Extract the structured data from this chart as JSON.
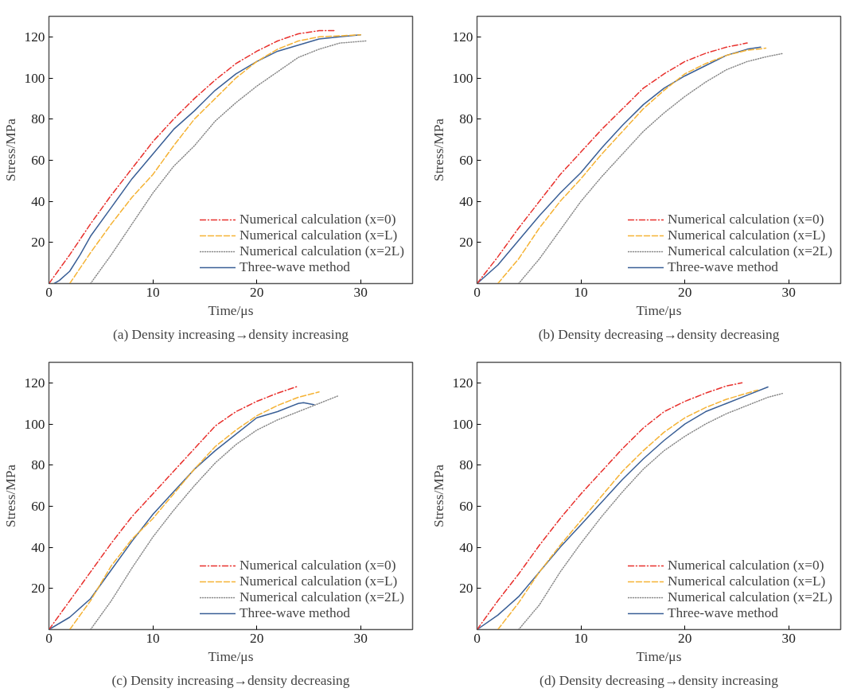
{
  "chart_data": [
    {
      "type": "line",
      "xlabel": "Time/μs",
      "ylabel": "Stress/MPa",
      "xlim": [
        0,
        35
      ],
      "ylim": [
        0,
        130
      ],
      "xticks": [
        0,
        10,
        20,
        30
      ],
      "yticks": [
        20,
        40,
        60,
        80,
        100,
        120
      ],
      "legend": "bottom right",
      "annotations": [
        "(a) Density increasing→density increasing"
      ],
      "series": [
        {
          "name": "Numerical calculation (x=0)",
          "color": "#e8312d",
          "line_style": "dashdot",
          "x": [
            0,
            2,
            4,
            6,
            8,
            10,
            12,
            14,
            16,
            18,
            20,
            22,
            24,
            26,
            27.5
          ],
          "values": [
            0,
            14,
            29,
            43,
            56,
            69,
            80,
            90,
            99,
            107,
            113,
            118,
            121.5,
            123,
            123
          ]
        },
        {
          "name": "Numerical calculation (x=L)",
          "color": "#f5b335",
          "line_style": "dashed",
          "x": [
            2,
            4,
            6,
            8,
            10,
            12,
            14,
            16,
            18,
            20,
            22,
            24,
            26,
            28,
            30
          ],
          "values": [
            0,
            15,
            29,
            42,
            53,
            67,
            80,
            90,
            100,
            108,
            114,
            118,
            120,
            120.5,
            121
          ]
        },
        {
          "name": "Numerical calculation (x=2L)",
          "color": "#888888",
          "line_style": "dotted",
          "x": [
            4,
            6,
            8,
            10,
            12,
            14,
            16,
            18,
            20,
            22,
            24,
            26,
            28,
            30.5
          ],
          "values": [
            0,
            14,
            29,
            44,
            57,
            67,
            79,
            88,
            96,
            103,
            110,
            114,
            117,
            118
          ]
        },
        {
          "name": "Three-wave method",
          "color": "#3a5f96",
          "line_style": "solid",
          "x": [
            0.5,
            1,
            2,
            3,
            4,
            6,
            8,
            10,
            12,
            14,
            16,
            18,
            20,
            22,
            24,
            26,
            28,
            30
          ],
          "values": [
            0,
            1.5,
            6,
            14,
            23,
            37,
            51,
            63,
            75,
            84,
            94,
            102,
            108,
            113,
            116,
            119,
            120,
            121
          ]
        }
      ]
    },
    {
      "type": "line",
      "xlabel": "Time/μs",
      "ylabel": "Stress/MPa",
      "xlim": [
        0,
        35
      ],
      "ylim": [
        0,
        130
      ],
      "xticks": [
        0,
        10,
        20,
        30
      ],
      "yticks": [
        20,
        40,
        60,
        80,
        100,
        120
      ],
      "legend": "bottom right",
      "annotations": [
        "(b) Density decreasing→density decreasing"
      ],
      "series": [
        {
          "name": "Numerical calculation (x=0)",
          "color": "#e8312d",
          "line_style": "dashdot",
          "x": [
            0,
            2,
            4,
            6,
            8,
            10,
            12,
            14,
            16,
            18,
            20,
            22,
            24,
            26
          ],
          "values": [
            0,
            13,
            27,
            40,
            53,
            64,
            75,
            85,
            95,
            102,
            108,
            112,
            115,
            117
          ]
        },
        {
          "name": "Numerical calculation (x=L)",
          "color": "#f5b335",
          "line_style": "dashed",
          "x": [
            2,
            4,
            6,
            8,
            10,
            12,
            14,
            16,
            18,
            20,
            22,
            24,
            26,
            27.8
          ],
          "values": [
            0,
            12,
            27,
            40,
            51,
            63,
            74,
            85,
            94,
            102,
            107,
            111,
            113.5,
            114.5
          ]
        },
        {
          "name": "Numerical calculation (x=2L)",
          "color": "#888888",
          "line_style": "dotted",
          "x": [
            4,
            6,
            8,
            10,
            12,
            14,
            16,
            18,
            20,
            22,
            24,
            26,
            28,
            29.5
          ],
          "values": [
            0,
            12,
            26,
            40,
            52,
            63,
            74,
            83,
            91,
            98,
            104,
            108,
            110.5,
            112
          ]
        },
        {
          "name": "Three-wave method",
          "color": "#3a5f96",
          "line_style": "solid",
          "x": [
            0,
            2,
            4,
            6,
            8,
            10,
            12,
            14,
            16,
            18,
            20,
            22,
            24,
            26,
            27.3
          ],
          "values": [
            0,
            9,
            21,
            33,
            44,
            54,
            66,
            77,
            87,
            95,
            101,
            106,
            111,
            114,
            115
          ]
        }
      ]
    },
    {
      "type": "line",
      "xlabel": "Time/μs",
      "ylabel": "Stress/MPa",
      "xlim": [
        0,
        35
      ],
      "ylim": [
        0,
        130
      ],
      "xticks": [
        0,
        10,
        20,
        30
      ],
      "yticks": [
        20,
        40,
        60,
        80,
        100,
        120
      ],
      "legend": "bottom right",
      "annotations": [
        "(c) Density increasing→density decreasing"
      ],
      "series": [
        {
          "name": "Numerical calculation (x=0)",
          "color": "#e8312d",
          "line_style": "dashdot",
          "x": [
            0,
            2,
            4,
            6,
            8,
            10,
            12,
            14,
            16,
            18,
            20,
            22,
            24
          ],
          "values": [
            0,
            14,
            28,
            42,
            55,
            66,
            77,
            88,
            99,
            106,
            111,
            115,
            118.4
          ]
        },
        {
          "name": "Numerical calculation (x=L)",
          "color": "#f5b335",
          "line_style": "dashed",
          "x": [
            2,
            4,
            6,
            8,
            10,
            12,
            14,
            16,
            18,
            20,
            22,
            24,
            26
          ],
          "values": [
            0,
            14,
            31,
            44,
            54,
            66,
            78,
            89,
            97,
            104,
            109,
            113,
            115.6
          ]
        },
        {
          "name": "Numerical calculation (x=2L)",
          "color": "#888888",
          "line_style": "dotted",
          "x": [
            4,
            6,
            8,
            10,
            12,
            14,
            16,
            18,
            20,
            22,
            24,
            26,
            27.9
          ],
          "values": [
            0,
            14,
            30,
            45,
            58,
            70,
            81,
            90,
            97,
            102,
            106,
            110,
            113.8
          ]
        },
        {
          "name": "Three-wave method",
          "color": "#3a5f96",
          "line_style": "solid",
          "x": [
            0,
            2,
            4,
            6,
            8,
            10,
            12,
            14,
            16,
            18,
            20,
            22,
            24,
            24.5,
            25.5
          ],
          "values": [
            0,
            6,
            15,
            29,
            43,
            56,
            67,
            78,
            87,
            95,
            103,
            106,
            110,
            110.4,
            109.4
          ]
        }
      ]
    },
    {
      "type": "line",
      "xlabel": "Time/μs",
      "ylabel": "Stress/MPa",
      "xlim": [
        0,
        35
      ],
      "ylim": [
        0,
        130
      ],
      "xticks": [
        0,
        10,
        20,
        30
      ],
      "yticks": [
        20,
        40,
        60,
        80,
        100,
        120
      ],
      "legend": "bottom right",
      "annotations": [
        "(d) Density decreasing→density increasing"
      ],
      "series": [
        {
          "name": "Numerical calculation (x=0)",
          "color": "#e8312d",
          "line_style": "dashdot",
          "x": [
            0,
            2,
            4,
            6,
            8,
            10,
            12,
            14,
            16,
            18,
            20,
            22,
            24,
            25.5
          ],
          "values": [
            0,
            14,
            27,
            41,
            54,
            66,
            77,
            88,
            98,
            106,
            111,
            115,
            118.5,
            120
          ]
        },
        {
          "name": "Numerical calculation (x=L)",
          "color": "#f5b335",
          "line_style": "dashed",
          "x": [
            2,
            4,
            6,
            8,
            10,
            12,
            14,
            16,
            18,
            20,
            22,
            24,
            26,
            27
          ],
          "values": [
            0,
            13,
            28,
            41,
            53,
            65,
            77,
            87,
            96,
            103,
            108,
            112,
            115,
            116.5
          ]
        },
        {
          "name": "Numerical calculation (x=2L)",
          "color": "#888888",
          "line_style": "dotted",
          "x": [
            4,
            6,
            8,
            10,
            12,
            14,
            16,
            18,
            20,
            22,
            24,
            26,
            28,
            29.5
          ],
          "values": [
            0,
            12,
            28,
            42,
            55,
            67,
            78,
            87,
            94,
            100,
            105,
            109,
            113,
            115
          ]
        },
        {
          "name": "Three-wave method",
          "color": "#3a5f96",
          "line_style": "solid",
          "x": [
            0,
            2,
            4,
            6,
            8,
            10,
            12,
            14,
            16,
            18,
            20,
            22,
            24,
            26,
            28
          ],
          "values": [
            0,
            7,
            16,
            28,
            40,
            51,
            62,
            73,
            83,
            92,
            100,
            106,
            110,
            114,
            118
          ]
        }
      ]
    }
  ]
}
